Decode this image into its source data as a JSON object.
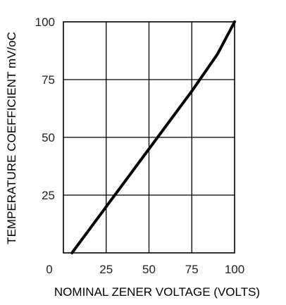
{
  "chart_data": {
    "type": "line",
    "title": "",
    "xlabel": "NOMINAL ZENER VOLTAGE (VOLTS)",
    "ylabel": "TEMPERATURE COEFFICIENT mV/oC",
    "xlim": [
      0,
      100
    ],
    "ylim": [
      0,
      100
    ],
    "x_ticks": [
      {
        "value": 0,
        "label": "0"
      },
      {
        "value": 25,
        "label": "25"
      },
      {
        "value": 50,
        "label": "50"
      },
      {
        "value": 75,
        "label": "75"
      },
      {
        "value": 100,
        "label": "100"
      }
    ],
    "y_ticks": [
      {
        "value": 25,
        "label": "25"
      },
      {
        "value": 50,
        "label": "50"
      },
      {
        "value": 75,
        "label": "75"
      },
      {
        "value": 100,
        "label": "100"
      }
    ],
    "grid": true,
    "series": [
      {
        "color": "#000000",
        "x": [
          5,
          25,
          50,
          75,
          90,
          100
        ],
        "y": [
          0,
          20,
          45,
          70,
          86,
          100
        ]
      }
    ]
  }
}
